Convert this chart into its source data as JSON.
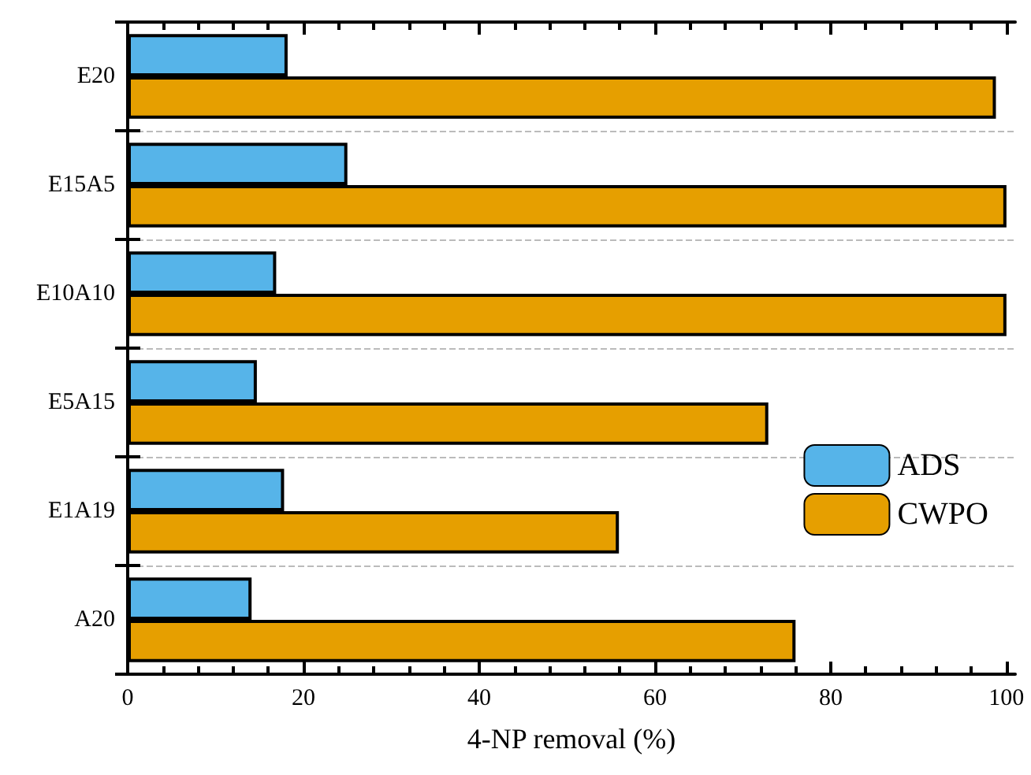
{
  "chart_data": {
    "type": "bar",
    "orientation": "horizontal",
    "xlabel": "4-NP removal (%)",
    "categories": [
      "E20",
      "E15A5",
      "E10A10",
      "E5A15",
      "E1A19",
      "A20"
    ],
    "series": [
      {
        "name": "ADS",
        "color": "#56b4e9",
        "values": [
          18.2,
          25.0,
          16.9,
          14.7,
          17.8,
          14.1
        ]
      },
      {
        "name": "CWPO",
        "color": "#e69f00",
        "values": [
          98.8,
          100,
          100,
          72.9,
          55.9,
          76.0
        ]
      }
    ],
    "xlim": [
      0,
      101
    ],
    "xticks": [
      0,
      20,
      40,
      60,
      80,
      100
    ],
    "grid": "y",
    "legend": "right"
  }
}
